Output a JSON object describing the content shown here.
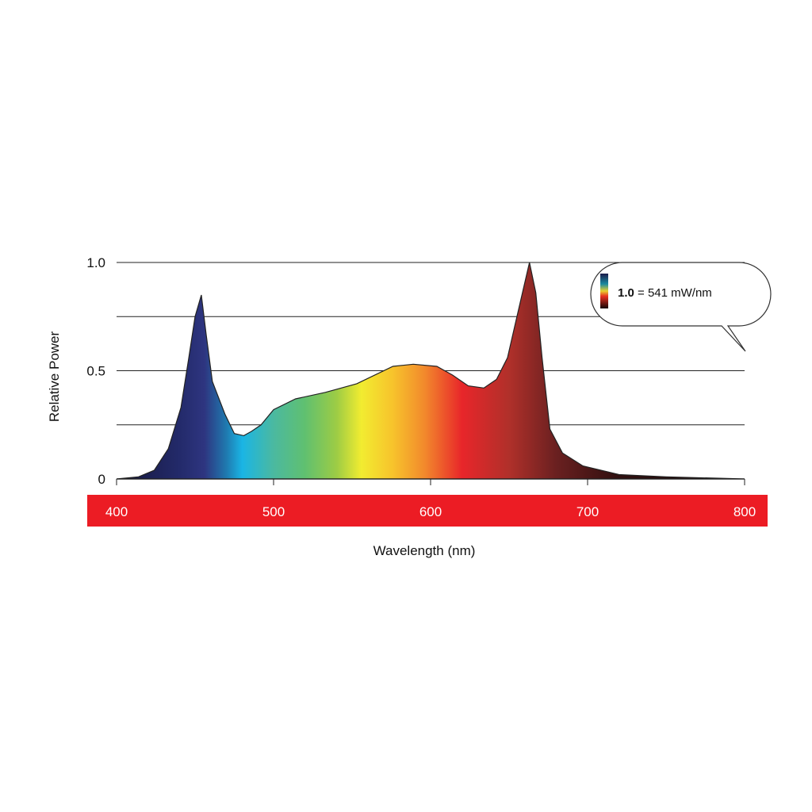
{
  "chart_data": {
    "type": "area",
    "title": "",
    "xlabel": "Wavelength (nm)",
    "ylabel": "Relative Power",
    "xlim": [
      400,
      800
    ],
    "ylim": [
      0,
      1.0
    ],
    "x_ticks": [
      "400",
      "500",
      "600",
      "700",
      "800"
    ],
    "y_ticks": [
      "1.0",
      "0.5",
      "0"
    ],
    "gridlines": [
      0.25,
      0.5,
      0.75,
      1.0
    ],
    "legend": {
      "bold": "1.0",
      "text": " = 541 mW/nm",
      "placement": "top-right"
    },
    "series": [
      {
        "name": "Relative Power",
        "x": [
          400,
          414,
          424,
          433,
          441,
          446,
          450,
          454,
          457,
          461,
          469,
          475,
          481,
          486,
          492,
          500,
          514,
          533,
          553,
          576,
          589,
          604,
          614,
          624,
          634,
          642,
          649,
          655,
          663,
          667,
          671,
          676,
          684,
          697,
          720,
          750,
          800
        ],
        "y": [
          0,
          0.01,
          0.04,
          0.14,
          0.33,
          0.56,
          0.75,
          0.85,
          0.67,
          0.45,
          0.3,
          0.21,
          0.2,
          0.22,
          0.25,
          0.32,
          0.37,
          0.4,
          0.44,
          0.52,
          0.53,
          0.52,
          0.48,
          0.43,
          0.42,
          0.46,
          0.56,
          0.75,
          1.0,
          0.86,
          0.56,
          0.23,
          0.12,
          0.06,
          0.02,
          0.01,
          0
        ]
      }
    ]
  },
  "colors": {
    "axis_band": "#ec1c24"
  }
}
